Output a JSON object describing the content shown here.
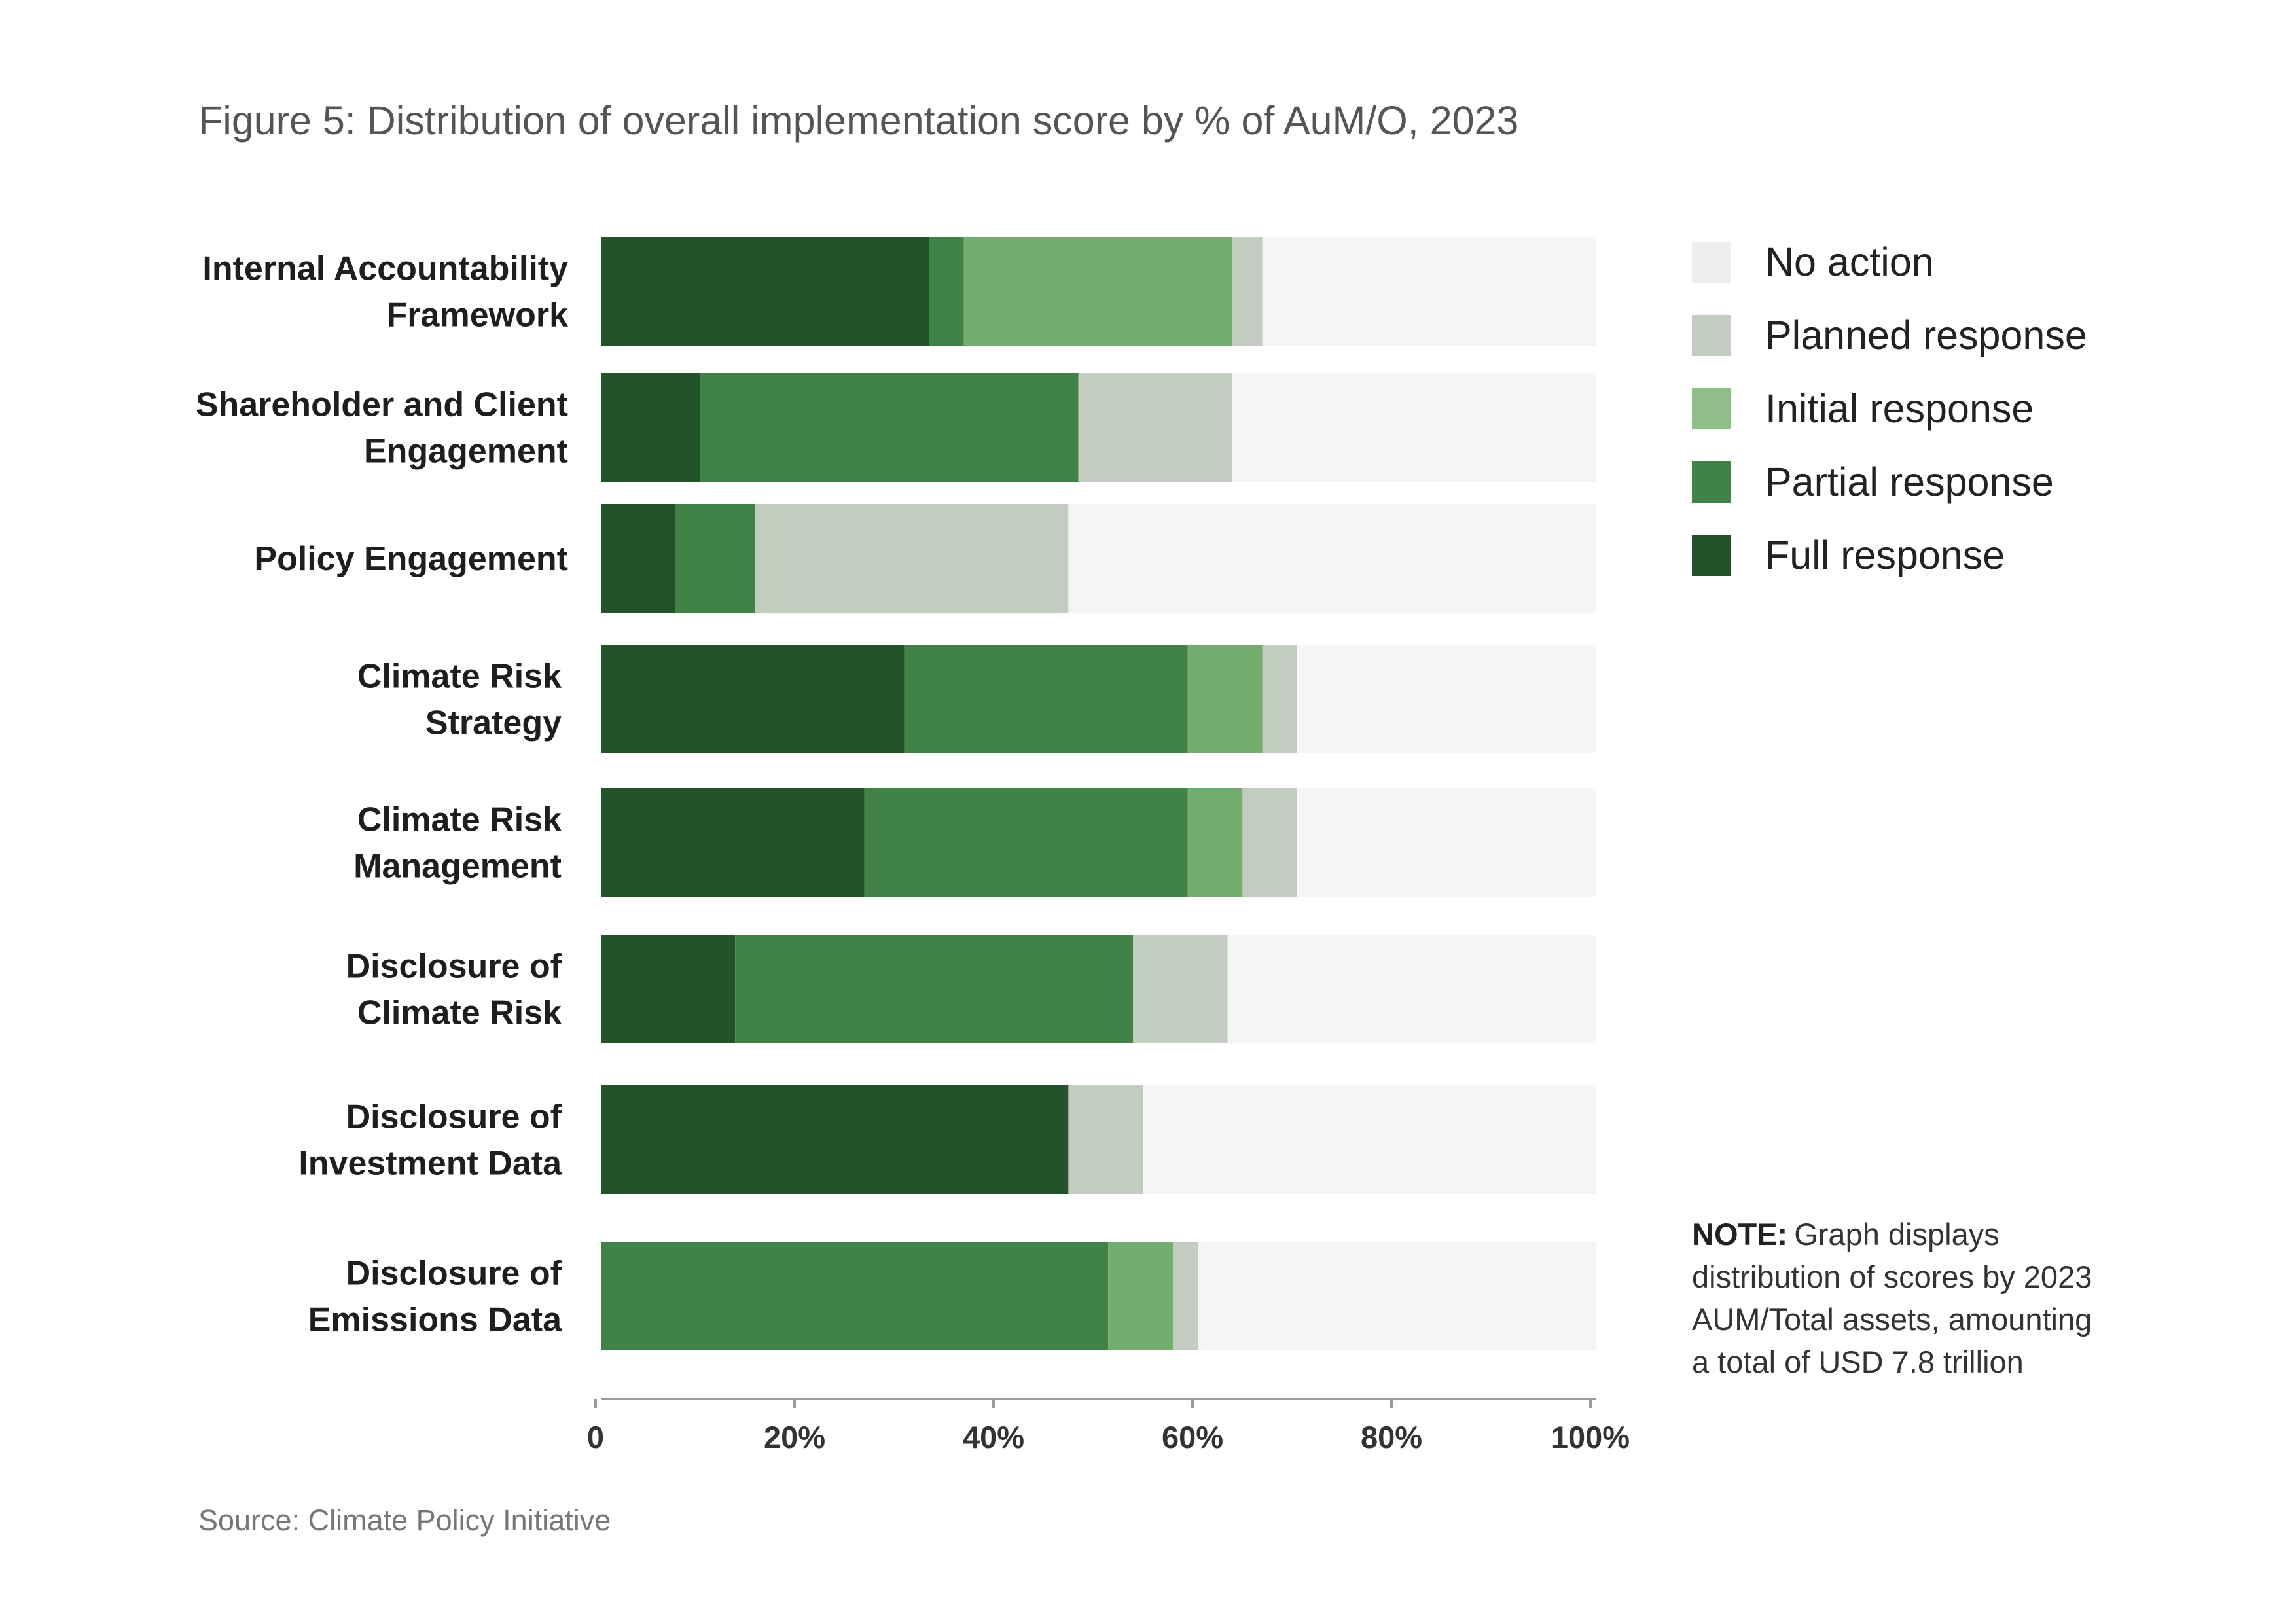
{
  "chart_data": {
    "type": "bar",
    "orientation": "horizontal",
    "stacked": true,
    "title": "Figure 5: Distribution of overall implementation score by % of AuM/O, 2023",
    "categories": [
      [
        "Internal Accountability",
        "Framework"
      ],
      [
        "Shareholder and Client",
        "Engagement"
      ],
      [
        "Policy Engagement"
      ],
      [
        "Climate Risk",
        "Strategy"
      ],
      [
        "Climate Risk",
        "Management"
      ],
      [
        "Disclosure of",
        "Climate Risk"
      ],
      [
        "Disclosure of",
        "Investment Data"
      ],
      [
        "Disclosure of",
        "Emissions Data"
      ]
    ],
    "series": [
      {
        "name": "Full response",
        "color": "#23532a",
        "values": [
          33,
          10,
          7.5,
          30.5,
          26.5,
          13.5,
          47,
          0
        ]
      },
      {
        "name": "Partial response",
        "color": "#418347",
        "values": [
          3.5,
          38,
          8,
          28.5,
          32.5,
          40,
          0,
          51
        ]
      },
      {
        "name": "Initial response",
        "color": "#73ad6e",
        "values": [
          27,
          0,
          0,
          7.5,
          5.5,
          0,
          0,
          6.5
        ]
      },
      {
        "name": "Planned response",
        "color": "#c2ccc1",
        "values": [
          3,
          15.5,
          31.5,
          3.5,
          5.5,
          9.5,
          7.5,
          2.5
        ]
      },
      {
        "name": "No action",
        "color": "#f5f5f5",
        "values": [
          33.5,
          36.5,
          53,
          30,
          30,
          37,
          45.5,
          40
        ]
      }
    ],
    "x_ticks": [
      "0",
      "20%",
      "40%",
      "60%",
      "80%",
      "100%"
    ],
    "xlim": [
      0,
      100
    ],
    "legend_position": "top-right",
    "legend_order": [
      "No action",
      "Planned response",
      "Initial response",
      "Partial response",
      "Full response"
    ],
    "legend_swatch_colors": {
      "No action": "#eeeeee",
      "Planned response": "#c2ccc1",
      "Initial response": "#8fbe88",
      "Partial response": "#418347",
      "Full response": "#23532a"
    },
    "grid": false
  },
  "note": {
    "label": "NOTE:",
    "lines": [
      "Graph displays",
      "distribution of scores  by 2023",
      "AUM/Total assets, amounting",
      "a total of USD 7.8 trillion"
    ]
  },
  "source": "Source: Climate Policy Initiative"
}
